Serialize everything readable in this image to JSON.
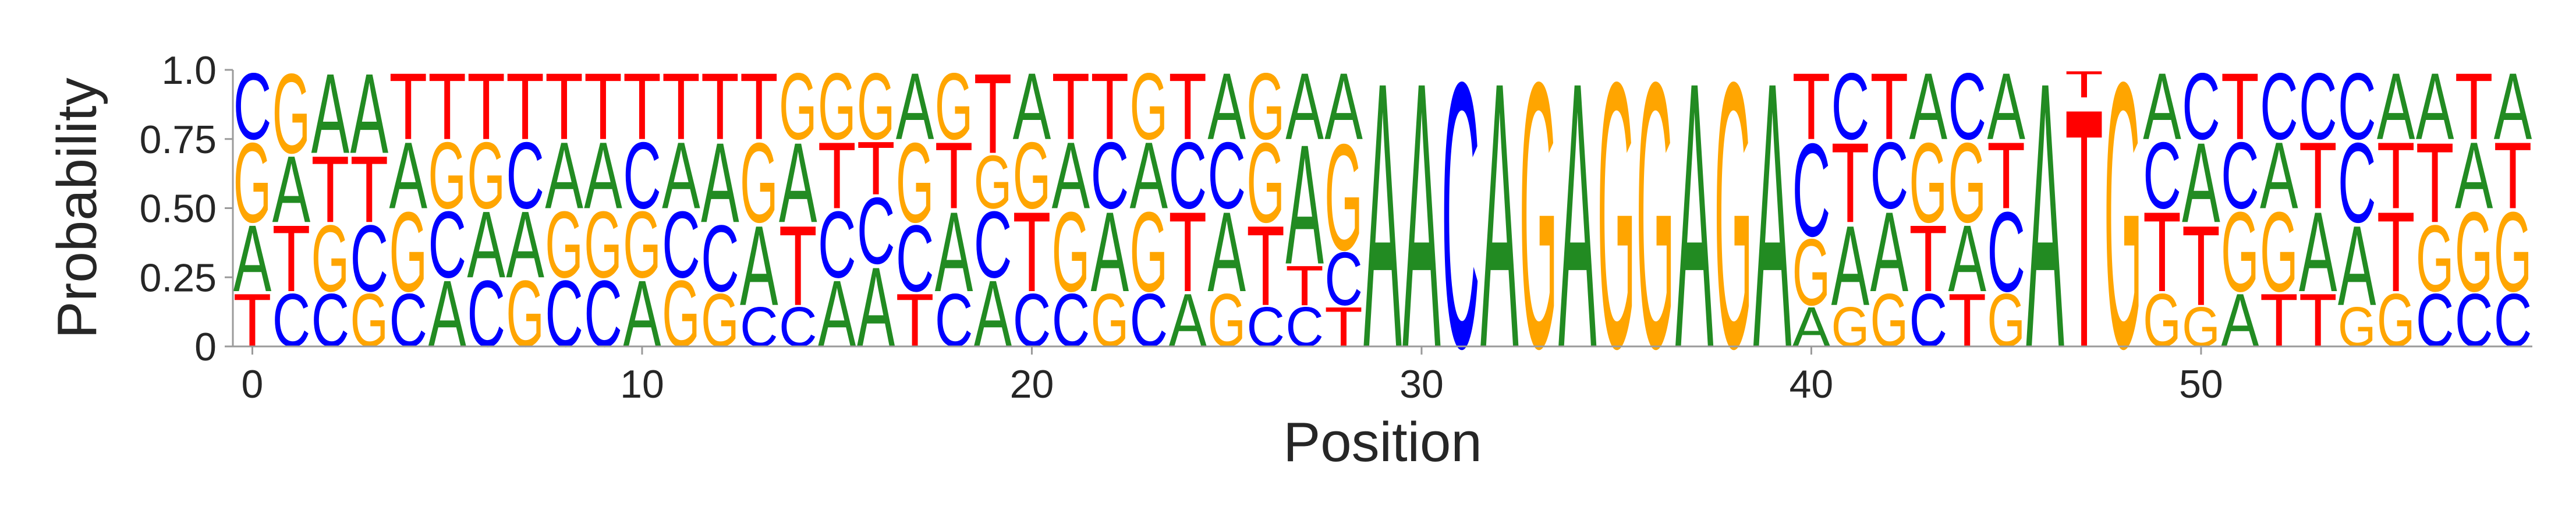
{
  "chart_data": {
    "type": "sequence-logo",
    "xlabel": "Position",
    "ylabel": "Probability",
    "ylim": [
      0,
      1
    ],
    "xlim": [
      -0.5,
      58.5
    ],
    "xticks": [
      0,
      10,
      20,
      30,
      40,
      50
    ],
    "yticks": [
      0,
      0.25,
      0.5,
      0.75,
      1.0
    ],
    "ytick_labels": [
      "0",
      "0.25",
      "0.50",
      "0.75",
      "1.0"
    ],
    "colors": {
      "A": "#228B22",
      "C": "#0000FF",
      "G": "#FFA500",
      "T": "#FF0000"
    },
    "positions": [
      {
        "x": 0,
        "letters": [
          [
            "T",
            0.2
          ],
          [
            "A",
            0.25
          ],
          [
            "G",
            0.3
          ],
          [
            "C",
            0.25
          ]
        ]
      },
      {
        "x": 1,
        "letters": [
          [
            "C",
            0.2
          ],
          [
            "T",
            0.25
          ],
          [
            "A",
            0.25
          ],
          [
            "G",
            0.3
          ]
        ]
      },
      {
        "x": 2,
        "letters": [
          [
            "C",
            0.2
          ],
          [
            "G",
            0.25
          ],
          [
            "T",
            0.25
          ],
          [
            "A",
            0.3
          ]
        ]
      },
      {
        "x": 3,
        "letters": [
          [
            "G",
            0.2
          ],
          [
            "C",
            0.25
          ],
          [
            "T",
            0.25
          ],
          [
            "A",
            0.3
          ]
        ]
      },
      {
        "x": 4,
        "letters": [
          [
            "C",
            0.2
          ],
          [
            "G",
            0.3
          ],
          [
            "A",
            0.25
          ],
          [
            "T",
            0.25
          ]
        ]
      },
      {
        "x": 5,
        "letters": [
          [
            "A",
            0.25
          ],
          [
            "C",
            0.25
          ],
          [
            "G",
            0.25
          ],
          [
            "T",
            0.25
          ]
        ]
      },
      {
        "x": 6,
        "letters": [
          [
            "C",
            0.25
          ],
          [
            "A",
            0.25
          ],
          [
            "G",
            0.25
          ],
          [
            "T",
            0.25
          ]
        ]
      },
      {
        "x": 7,
        "letters": [
          [
            "G",
            0.25
          ],
          [
            "A",
            0.25
          ],
          [
            "C",
            0.25
          ],
          [
            "T",
            0.25
          ]
        ]
      },
      {
        "x": 8,
        "letters": [
          [
            "C",
            0.25
          ],
          [
            "G",
            0.25
          ],
          [
            "A",
            0.25
          ],
          [
            "T",
            0.25
          ]
        ]
      },
      {
        "x": 9,
        "letters": [
          [
            "C",
            0.25
          ],
          [
            "G",
            0.25
          ],
          [
            "A",
            0.25
          ],
          [
            "T",
            0.25
          ]
        ]
      },
      {
        "x": 10,
        "letters": [
          [
            "A",
            0.25
          ],
          [
            "G",
            0.25
          ],
          [
            "C",
            0.25
          ],
          [
            "T",
            0.25
          ]
        ]
      },
      {
        "x": 11,
        "letters": [
          [
            "G",
            0.25
          ],
          [
            "C",
            0.25
          ],
          [
            "A",
            0.25
          ],
          [
            "T",
            0.25
          ]
        ]
      },
      {
        "x": 12,
        "letters": [
          [
            "G",
            0.2
          ],
          [
            "C",
            0.25
          ],
          [
            "A",
            0.3
          ],
          [
            "T",
            0.25
          ]
        ]
      },
      {
        "x": 13,
        "letters": [
          [
            "C",
            0.15
          ],
          [
            "A",
            0.3
          ],
          [
            "G",
            0.3
          ],
          [
            "T",
            0.25
          ]
        ]
      },
      {
        "x": 14,
        "letters": [
          [
            "C",
            0.15
          ],
          [
            "T",
            0.3
          ],
          [
            "A",
            0.3
          ],
          [
            "G",
            0.25
          ]
        ]
      },
      {
        "x": 15,
        "letters": [
          [
            "A",
            0.25
          ],
          [
            "C",
            0.25
          ],
          [
            "T",
            0.25
          ],
          [
            "G",
            0.25
          ]
        ]
      },
      {
        "x": 16,
        "letters": [
          [
            "A",
            0.3
          ],
          [
            "C",
            0.25
          ],
          [
            "T",
            0.2
          ],
          [
            "G",
            0.25
          ]
        ]
      },
      {
        "x": 17,
        "letters": [
          [
            "T",
            0.2
          ],
          [
            "C",
            0.25
          ],
          [
            "G",
            0.3
          ],
          [
            "A",
            0.25
          ]
        ]
      },
      {
        "x": 18,
        "letters": [
          [
            "C",
            0.2
          ],
          [
            "A",
            0.3
          ],
          [
            "T",
            0.25
          ],
          [
            "G",
            0.25
          ]
        ]
      },
      {
        "x": 19,
        "letters": [
          [
            "A",
            0.25
          ],
          [
            "C",
            0.25
          ],
          [
            "G",
            0.2
          ],
          [
            "T",
            0.3
          ]
        ]
      },
      {
        "x": 20,
        "letters": [
          [
            "C",
            0.2
          ],
          [
            "T",
            0.3
          ],
          [
            "G",
            0.25
          ],
          [
            "A",
            0.25
          ]
        ]
      },
      {
        "x": 21,
        "letters": [
          [
            "C",
            0.2
          ],
          [
            "G",
            0.3
          ],
          [
            "A",
            0.25
          ],
          [
            "T",
            0.25
          ]
        ]
      },
      {
        "x": 22,
        "letters": [
          [
            "G",
            0.2
          ],
          [
            "A",
            0.3
          ],
          [
            "C",
            0.25
          ],
          [
            "T",
            0.25
          ]
        ]
      },
      {
        "x": 23,
        "letters": [
          [
            "C",
            0.2
          ],
          [
            "G",
            0.3
          ],
          [
            "A",
            0.25
          ],
          [
            "G",
            0.25
          ]
        ]
      },
      {
        "x": 24,
        "letters": [
          [
            "A",
            0.2
          ],
          [
            "T",
            0.3
          ],
          [
            "C",
            0.25
          ],
          [
            "T",
            0.25
          ]
        ]
      },
      {
        "x": 25,
        "letters": [
          [
            "G",
            0.2
          ],
          [
            "A",
            0.3
          ],
          [
            "C",
            0.25
          ],
          [
            "A",
            0.25
          ]
        ]
      },
      {
        "x": 26,
        "letters": [
          [
            "C",
            0.15
          ],
          [
            "T",
            0.3
          ],
          [
            "G",
            0.3
          ],
          [
            "G",
            0.25
          ]
        ]
      },
      {
        "x": 27,
        "letters": [
          [
            "C",
            0.15
          ],
          [
            "T",
            0.15
          ],
          [
            "A",
            0.45
          ],
          [
            "A",
            0.25
          ]
        ]
      },
      {
        "x": 28,
        "letters": [
          [
            "T",
            0.15
          ],
          [
            "C",
            0.2
          ],
          [
            "G",
            0.4
          ],
          [
            "A",
            0.25
          ]
        ]
      },
      {
        "x": 29,
        "letters": [
          [
            "A",
            1.0
          ]
        ]
      },
      {
        "x": 30,
        "letters": [
          [
            "A",
            1.0
          ]
        ]
      },
      {
        "x": 31,
        "letters": [
          [
            "C",
            1.0
          ]
        ]
      },
      {
        "x": 32,
        "letters": [
          [
            "A",
            1.0
          ]
        ]
      },
      {
        "x": 33,
        "letters": [
          [
            "G",
            1.0
          ]
        ]
      },
      {
        "x": 34,
        "letters": [
          [
            "A",
            1.0
          ]
        ]
      },
      {
        "x": 35,
        "letters": [
          [
            "G",
            1.0
          ]
        ]
      },
      {
        "x": 36,
        "letters": [
          [
            "G",
            1.0
          ]
        ]
      },
      {
        "x": 37,
        "letters": [
          [
            "A",
            1.0
          ]
        ]
      },
      {
        "x": 38,
        "letters": [
          [
            "G",
            1.0
          ]
        ]
      },
      {
        "x": 39,
        "letters": [
          [
            "A",
            1.0
          ]
        ]
      },
      {
        "x": 40,
        "letters": [
          [
            "A",
            0.15
          ],
          [
            "G",
            0.25
          ],
          [
            "C",
            0.35
          ],
          [
            "T",
            0.25
          ]
        ]
      },
      {
        "x": 41,
        "letters": [
          [
            "G",
            0.15
          ],
          [
            "A",
            0.3
          ],
          [
            "T",
            0.3
          ],
          [
            "C",
            0.25
          ]
        ]
      },
      {
        "x": 42,
        "letters": [
          [
            "G",
            0.2
          ],
          [
            "A",
            0.3
          ],
          [
            "C",
            0.25
          ],
          [
            "T",
            0.25
          ]
        ]
      },
      {
        "x": 43,
        "letters": [
          [
            "C",
            0.2
          ],
          [
            "T",
            0.25
          ],
          [
            "G",
            0.3
          ],
          [
            "A",
            0.25
          ]
        ]
      },
      {
        "x": 44,
        "letters": [
          [
            "T",
            0.2
          ],
          [
            "A",
            0.25
          ],
          [
            "G",
            0.3
          ],
          [
            "C",
            0.25
          ]
        ]
      },
      {
        "x": 45,
        "letters": [
          [
            "G",
            0.2
          ],
          [
            "C",
            0.3
          ],
          [
            "T",
            0.25
          ],
          [
            "A",
            0.25
          ]
        ]
      },
      {
        "x": 46,
        "letters": [
          [
            "A",
            1.0
          ]
        ]
      },
      {
        "x": 47,
        "letters": [
          [
            "T",
            0.9
          ],
          [
            "T",
            0.1
          ]
        ]
      },
      {
        "x": 48,
        "letters": [
          [
            "G",
            1.0
          ]
        ]
      },
      {
        "x": 49,
        "letters": [
          [
            "G",
            0.2
          ],
          [
            "T",
            0.3
          ],
          [
            "C",
            0.25
          ],
          [
            "A",
            0.25
          ]
        ]
      },
      {
        "x": 50,
        "letters": [
          [
            "G",
            0.15
          ],
          [
            "T",
            0.3
          ],
          [
            "A",
            0.3
          ],
          [
            "C",
            0.25
          ]
        ]
      },
      {
        "x": 51,
        "letters": [
          [
            "A",
            0.2
          ],
          [
            "G",
            0.3
          ],
          [
            "C",
            0.25
          ],
          [
            "T",
            0.25
          ]
        ]
      },
      {
        "x": 52,
        "letters": [
          [
            "T",
            0.2
          ],
          [
            "G",
            0.3
          ],
          [
            "A",
            0.25
          ],
          [
            "C",
            0.25
          ]
        ]
      },
      {
        "x": 53,
        "letters": [
          [
            "T",
            0.2
          ],
          [
            "A",
            0.3
          ],
          [
            "T",
            0.25
          ],
          [
            "C",
            0.25
          ]
        ]
      },
      {
        "x": 54,
        "letters": [
          [
            "G",
            0.15
          ],
          [
            "A",
            0.3
          ],
          [
            "C",
            0.3
          ],
          [
            "C",
            0.25
          ]
        ]
      },
      {
        "x": 55,
        "letters": [
          [
            "G",
            0.2
          ],
          [
            "T",
            0.3
          ],
          [
            "T",
            0.25
          ],
          [
            "A",
            0.25
          ]
        ]
      },
      {
        "x": 56,
        "letters": [
          [
            "C",
            0.2
          ],
          [
            "G",
            0.25
          ],
          [
            "T",
            0.3
          ],
          [
            "A",
            0.25
          ]
        ]
      },
      {
        "x": 57,
        "letters": [
          [
            "C",
            0.2
          ],
          [
            "G",
            0.3
          ],
          [
            "A",
            0.25
          ],
          [
            "T",
            0.25
          ]
        ]
      },
      {
        "x": 58,
        "letters": [
          [
            "C",
            0.2
          ],
          [
            "G",
            0.3
          ],
          [
            "T",
            0.25
          ],
          [
            "A",
            0.25
          ]
        ]
      }
    ]
  }
}
